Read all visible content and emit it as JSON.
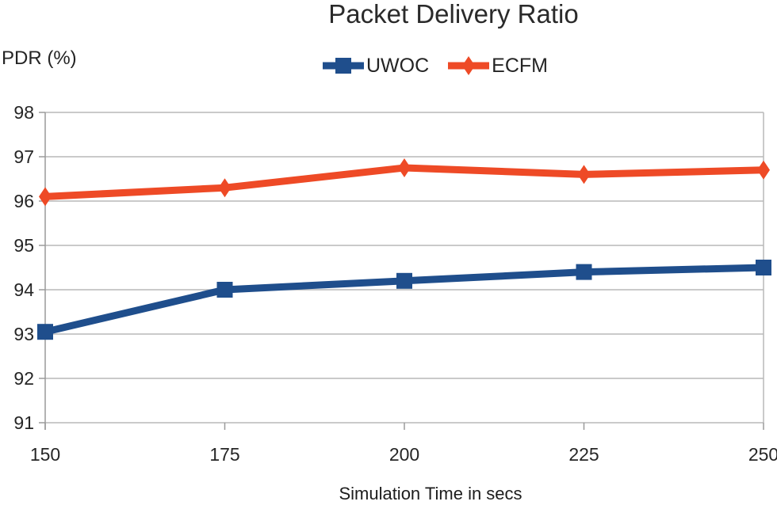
{
  "chart_data": {
    "type": "line",
    "title": "Packet Delivery Ratio",
    "ylabel": "PDR (%)",
    "xlabel": "Simulation Time in secs",
    "x": [
      150,
      175,
      200,
      225,
      250
    ],
    "xticklabels": [
      "150",
      "175",
      "200",
      "225",
      "250"
    ],
    "ylim": [
      91,
      98
    ],
    "yticks": [
      91,
      92,
      93,
      94,
      95,
      96,
      97,
      98
    ],
    "grid": true,
    "legend_position": "top-center",
    "grid_color": "#b9b9b9",
    "axis_color": "#9a9a9a",
    "text_color": "#262626",
    "series": [
      {
        "name": "UWOC",
        "color": "#1F4E8C",
        "marker": "square",
        "values": [
          93.05,
          94.0,
          94.2,
          94.4,
          94.5
        ]
      },
      {
        "name": "ECFM",
        "color": "#EE4A26",
        "marker": "diamond",
        "values": [
          96.1,
          96.3,
          96.75,
          96.6,
          96.7
        ]
      }
    ]
  }
}
